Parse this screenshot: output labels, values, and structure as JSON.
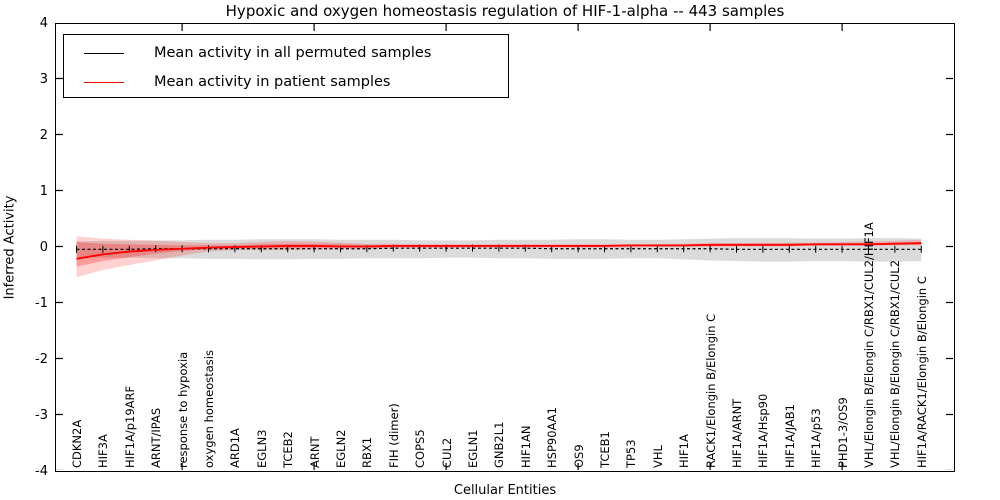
{
  "title": "Hypoxic and oxygen homeostasis regulation of HIF-1-alpha -- 443 samples",
  "axes": {
    "ylabel": "Inferred Activity",
    "xlabel": "Cellular Entities",
    "ytick_labels": [
      "4",
      "3",
      "2",
      "1",
      "0",
      "-1",
      "-2",
      "-3",
      "-4"
    ],
    "ylim": [
      -4,
      4
    ]
  },
  "legend": {
    "items": [
      {
        "label": "Mean activity in all permuted samples",
        "color": "#000000"
      },
      {
        "label": "Mean activity in patient samples",
        "color": "#ff0000"
      }
    ]
  },
  "chart_data": {
    "type": "line",
    "title": "Hypoxic and oxygen homeostasis regulation of HIF-1-alpha -- 443 samples",
    "xlabel": "Cellular Entities",
    "ylabel": "Inferred Activity",
    "ylim": [
      -4,
      4
    ],
    "grid": false,
    "legend_position": "upper left",
    "categories": [
      "CDKN2A",
      "HIF3A",
      "HIF1A/p19ARF",
      "ARNT/IPAS",
      "response to hypoxia",
      "oxygen homeostasis",
      "ARD1A",
      "EGLN3",
      "TCEB2",
      "ARNT",
      "EGLN2",
      "RBX1",
      "FIH (dimer)",
      "COPS5",
      "CUL2",
      "EGLN1",
      "GNB2L1",
      "HIF1AN",
      "HSP90AA1",
      "OS9",
      "TCEB1",
      "TP53",
      "VHL",
      "HIF1A",
      "RACK1/Elongin B/Elongin C",
      "HIF1A/ARNT",
      "HIF1A/Hsp90",
      "HIF1A/JAB1",
      "HIF1A/p53",
      "PHD1-3/OS9",
      "VHL/Elongin B/Elongin C/RBX1/CUL2/HIF1A",
      "VHL/Elongin B/Elongin C/RBX1/CUL2",
      "HIF1A/RACK1/Elongin B/Elongin C"
    ],
    "series": [
      {
        "name": "Mean activity in all permuted samples",
        "color": "#000000",
        "style": "dashed-with-tick-markers",
        "values": [
          -0.05,
          -0.05,
          -0.05,
          -0.04,
          -0.04,
          -0.04,
          -0.04,
          -0.04,
          -0.04,
          -0.04,
          -0.04,
          -0.04,
          -0.03,
          -0.03,
          -0.03,
          -0.03,
          -0.03,
          -0.03,
          -0.04,
          -0.04,
          -0.04,
          -0.04,
          -0.04,
          -0.04,
          -0.04,
          -0.05,
          -0.05,
          -0.05,
          -0.05,
          -0.05,
          -0.05,
          -0.05,
          -0.05
        ]
      },
      {
        "name": "Mean activity in patient samples",
        "color": "#ff0000",
        "style": "solid",
        "values": [
          -0.22,
          -0.14,
          -0.09,
          -0.06,
          -0.04,
          -0.02,
          -0.01,
          0.0,
          0.01,
          0.01,
          0.0,
          0.0,
          0.01,
          0.01,
          0.01,
          0.01,
          0.01,
          0.01,
          0.01,
          0.01,
          0.01,
          0.02,
          0.02,
          0.02,
          0.03,
          0.03,
          0.03,
          0.03,
          0.04,
          0.04,
          0.04,
          0.05,
          0.06
        ]
      }
    ],
    "bands": [
      {
        "name": "permuted-samples-range",
        "color": "#bdbdbd",
        "opacity": 0.55,
        "upper": [
          0.09,
          0.1,
          0.1,
          0.11,
          0.11,
          0.12,
          0.12,
          0.13,
          0.13,
          0.13,
          0.12,
          0.12,
          0.12,
          0.11,
          0.11,
          0.11,
          0.12,
          0.12,
          0.12,
          0.13,
          0.13,
          0.12,
          0.12,
          0.13,
          0.14,
          0.15,
          0.15,
          0.15,
          0.14,
          0.14,
          0.15,
          0.15,
          0.14
        ],
        "lower": [
          -0.19,
          -0.2,
          -0.2,
          -0.21,
          -0.21,
          -0.22,
          -0.22,
          -0.23,
          -0.23,
          -0.22,
          -0.22,
          -0.21,
          -0.21,
          -0.21,
          -0.2,
          -0.2,
          -0.21,
          -0.21,
          -0.22,
          -0.22,
          -0.22,
          -0.21,
          -0.21,
          -0.23,
          -0.25,
          -0.26,
          -0.27,
          -0.27,
          -0.26,
          -0.26,
          -0.27,
          -0.27,
          -0.26
        ]
      },
      {
        "name": "patient-samples-range-outer",
        "color": "#ff0000",
        "opacity": 0.18,
        "upper": [
          0.18,
          0.14,
          0.12,
          0.1,
          0.08,
          0.06,
          0.06,
          0.08,
          0.1,
          0.09,
          0.07,
          0.05,
          0.05,
          0.04,
          0.04,
          0.04,
          0.04,
          0.04,
          0.04,
          0.04,
          0.04,
          0.04,
          0.04,
          0.05,
          0.06,
          0.06,
          0.07,
          0.07,
          0.07,
          0.08,
          0.09,
          0.1,
          0.12
        ],
        "lower": [
          -0.55,
          -0.42,
          -0.33,
          -0.25,
          -0.16,
          -0.09,
          -0.06,
          -0.06,
          -0.06,
          -0.05,
          -0.04,
          -0.04,
          -0.03,
          -0.03,
          -0.03,
          -0.02,
          -0.02,
          -0.02,
          -0.02,
          -0.02,
          -0.02,
          -0.02,
          -0.01,
          -0.01,
          -0.01,
          0.0,
          0.0,
          0.0,
          0.01,
          0.01,
          0.01,
          0.02,
          0.02
        ]
      },
      {
        "name": "patient-samples-range-inner",
        "color": "#ff0000",
        "opacity": 0.25,
        "upper": [
          0.08,
          0.05,
          0.04,
          0.03,
          0.02,
          0.02,
          0.02,
          0.04,
          0.05,
          0.05,
          0.04,
          0.03,
          0.03,
          0.02,
          0.02,
          0.02,
          0.02,
          0.02,
          0.02,
          0.02,
          0.02,
          0.03,
          0.03,
          0.03,
          0.04,
          0.04,
          0.04,
          0.05,
          0.05,
          0.05,
          0.06,
          0.06,
          0.08
        ],
        "lower": [
          -0.36,
          -0.26,
          -0.19,
          -0.13,
          -0.08,
          -0.05,
          -0.03,
          -0.03,
          -0.03,
          -0.02,
          -0.02,
          -0.02,
          -0.01,
          -0.01,
          -0.01,
          -0.01,
          -0.01,
          0.0,
          0.0,
          0.0,
          0.0,
          0.0,
          0.0,
          0.0,
          0.01,
          0.01,
          0.01,
          0.01,
          0.02,
          0.02,
          0.02,
          0.03,
          0.03
        ]
      }
    ],
    "x_major_tick_indexes": [
      4,
      9,
      14,
      19,
      24,
      29
    ]
  }
}
